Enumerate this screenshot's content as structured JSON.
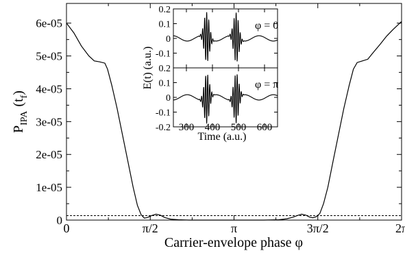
{
  "chart_data": [
    {
      "type": "line",
      "xlabel": "Carrier-envelope phase φ",
      "ylabel": "P",
      "ylabel_sub": "IPA",
      "ylabel_arg": "(t",
      "ylabel_arg_sub": "f",
      "ylabel_arg_close": ")",
      "xlim": [
        0,
        6.283185
      ],
      "ylim": [
        0,
        6.6e-05
      ],
      "x_ticks": [
        {
          "value": 0,
          "label": "0"
        },
        {
          "value": 1.570796,
          "label": "π/2"
        },
        {
          "value": 3.141593,
          "label": "π"
        },
        {
          "value": 4.712389,
          "label": "3π/2"
        },
        {
          "value": 6.283185,
          "label": "2π"
        }
      ],
      "y_ticks": [
        {
          "value": 0,
          "label": "0"
        },
        {
          "value": 1e-05,
          "label": "1e-05"
        },
        {
          "value": 2e-05,
          "label": "2e-05"
        },
        {
          "value": 3e-05,
          "label": "3e-05"
        },
        {
          "value": 4e-05,
          "label": "4e-05"
        },
        {
          "value": 5e-05,
          "label": "5e-05"
        },
        {
          "value": 6e-05,
          "label": "6e-05"
        }
      ],
      "series": [
        {
          "style": "solid",
          "points": [
            [
              0.0,
              6e-05
            ],
            [
              0.14,
              5.7e-05
            ],
            [
              0.28,
              5.3e-05
            ],
            [
              0.42,
              5e-05
            ],
            [
              0.52,
              4.85e-05
            ],
            [
              0.62,
              4.82e-05
            ],
            [
              0.72,
              4.78e-05
            ],
            [
              0.77,
              4.6e-05
            ],
            [
              0.85,
              4.1e-05
            ],
            [
              0.95,
              3.4e-05
            ],
            [
              1.05,
              2.6e-05
            ],
            [
              1.15,
              1.8e-05
            ],
            [
              1.25,
              1e-05
            ],
            [
              1.33,
              4.5e-06
            ],
            [
              1.4,
              1.6e-06
            ],
            [
              1.46,
              6e-07
            ],
            [
              1.52,
              8e-07
            ],
            [
              1.6,
              1.4e-06
            ],
            [
              1.68,
              1.8e-06
            ],
            [
              1.76,
              1.5e-06
            ],
            [
              1.84,
              8e-07
            ],
            [
              1.95,
              3e-07
            ],
            [
              2.1,
              1e-07
            ],
            [
              2.3,
              0.0
            ],
            [
              2.6,
              0.0
            ],
            [
              3.141593,
              0.0
            ],
            [
              3.7,
              0.0
            ],
            [
              3.98,
              1e-07
            ],
            [
              4.13,
              4e-07
            ],
            [
              4.25,
              9e-07
            ],
            [
              4.33,
              1.4e-06
            ],
            [
              4.41,
              1.8e-06
            ],
            [
              4.49,
              1.5e-06
            ],
            [
              4.56,
              9e-07
            ],
            [
              4.62,
              7e-07
            ],
            [
              4.68,
              1e-06
            ],
            [
              4.75,
              2e-06
            ],
            [
              4.82,
              5e-06
            ],
            [
              4.9,
              1e-05
            ],
            [
              5.0,
              1.8e-05
            ],
            [
              5.1,
              2.6e-05
            ],
            [
              5.2,
              3.4e-05
            ],
            [
              5.3,
              4.1e-05
            ],
            [
              5.38,
              4.6e-05
            ],
            [
              5.45,
              4.8e-05
            ],
            [
              5.55,
              4.85e-05
            ],
            [
              5.65,
              4.9e-05
            ],
            [
              5.75,
              5.1e-05
            ],
            [
              5.88,
              5.35e-05
            ],
            [
              6.0,
              5.6e-05
            ],
            [
              6.12,
              5.8e-05
            ],
            [
              6.283185,
              6.05e-05
            ]
          ]
        },
        {
          "style": "dashed",
          "points": [
            [
              0,
              1.35e-06
            ],
            [
              6.283185,
              1.35e-06
            ]
          ]
        }
      ]
    },
    {
      "type": "line",
      "xlabel": "Time (a.u.)",
      "ylabel": "E(t) (a.u.)",
      "xlim": [
        250,
        650
      ],
      "x_ticks": [
        300,
        400,
        500,
        600
      ],
      "panels": [
        {
          "label": "φ = 0",
          "ylim": [
            -0.2,
            0.2
          ],
          "y_ticks": [
            "0.2",
            "0.1",
            "0",
            "-0.1"
          ],
          "phase": 0,
          "pulses": [
            {
              "center": 378,
              "amplitude": 0.17,
              "width": 10,
              "omega": 0.8
            },
            {
              "center": 491,
              "amplitude": 0.17,
              "width": 10,
              "omega": 0.8
            }
          ],
          "background": {
            "amplitude": 0.018,
            "omega": 0.057
          }
        },
        {
          "label": "φ = π",
          "ylim": [
            -0.2,
            0.2
          ],
          "y_ticks": [
            "0.2",
            "0.1",
            "0",
            "-0.1",
            "-0.2"
          ],
          "phase": 3.141593,
          "pulses": [
            {
              "center": 378,
              "amplitude": 0.17,
              "width": 10,
              "omega": 0.8
            },
            {
              "center": 491,
              "amplitude": 0.17,
              "width": 10,
              "omega": 0.8
            }
          ],
          "background": {
            "amplitude": 0.018,
            "omega": 0.057
          }
        }
      ]
    }
  ]
}
